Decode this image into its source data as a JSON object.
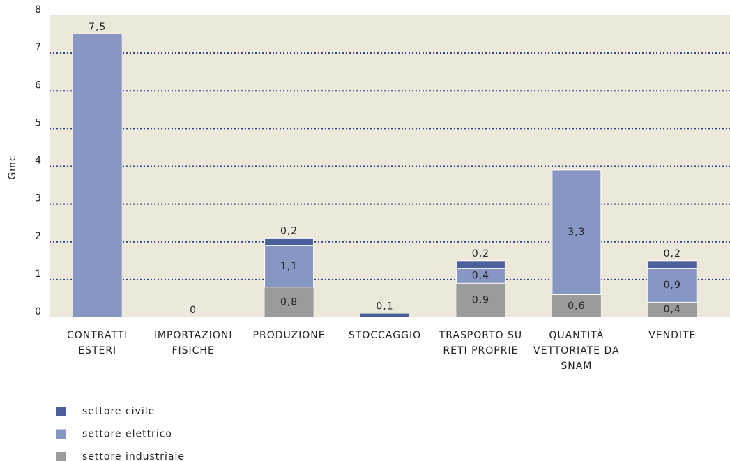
{
  "chart_data": {
    "type": "stacked_bar",
    "y_label": "Gmc",
    "categories": [
      "CONTRATTI ESTERI",
      "IMPORTAZIONI FISICHE",
      "PRODUZIONE",
      "STOCCAGGIO",
      "TRASPORTO SU RETI PROPRIE",
      "QUANTITÀ VETTORIATE DA SNAM",
      "VENDITE"
    ],
    "series": [
      {
        "name": "settore civile",
        "color": "#4c5f9c",
        "values": [
          null,
          null,
          0.2,
          0.1,
          0.2,
          null,
          0.2
        ],
        "value_labels": [
          null,
          null,
          "0,2",
          "0,1",
          "0,2",
          null,
          "0,2"
        ]
      },
      {
        "name": "settore elettrico",
        "color": "#8896c4",
        "values": [
          7.5,
          0,
          1.1,
          null,
          0.4,
          3.3,
          0.9
        ],
        "value_labels": [
          "7,5",
          "0",
          "1,1",
          null,
          "0,4",
          "3,3",
          "0,9"
        ]
      },
      {
        "name": "settore industriale",
        "color": "#9b9b9b",
        "values": [
          null,
          null,
          0.8,
          null,
          0.9,
          0.6,
          0.4
        ],
        "value_labels": [
          null,
          null,
          "0,8",
          null,
          "0,9",
          "0,6",
          "0,4"
        ]
      }
    ],
    "ylim": [
      0,
      8
    ],
    "yticks": [
      0,
      1,
      2,
      3,
      4,
      5,
      6,
      7,
      8
    ],
    "grid": true,
    "legend": "bottom-left"
  }
}
